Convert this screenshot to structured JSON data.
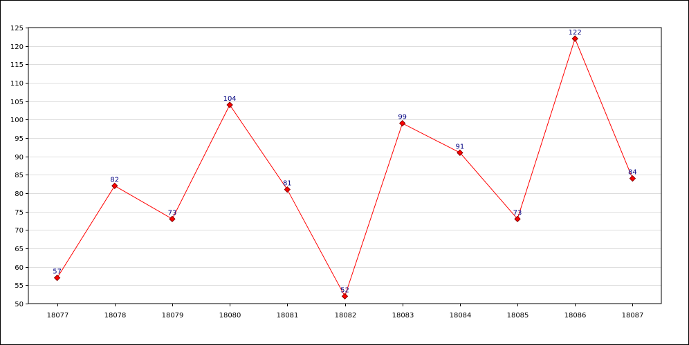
{
  "chart_data": {
    "type": "line",
    "title": "",
    "xlabel": "",
    "ylabel": "",
    "categories": [
      "18077",
      "18078",
      "18079",
      "18080",
      "18081",
      "18082",
      "18083",
      "18084",
      "18085",
      "18086",
      "18087"
    ],
    "series": [
      {
        "values": [
          57,
          82,
          73,
          104,
          81,
          52,
          99,
          91,
          73,
          122,
          84
        ]
      }
    ],
    "ylim": [
      50,
      125
    ],
    "yticks": [
      50,
      55,
      60,
      65,
      70,
      75,
      80,
      85,
      90,
      95,
      100,
      105,
      110,
      115,
      120,
      125
    ],
    "grid": true,
    "data_labels": true,
    "colors": {
      "line": "#ff0000",
      "marker_fill": "#ff0000",
      "marker_stroke": "#800000",
      "data_label": "#000080",
      "grid": "#dddddd",
      "axis": "#000000"
    }
  }
}
